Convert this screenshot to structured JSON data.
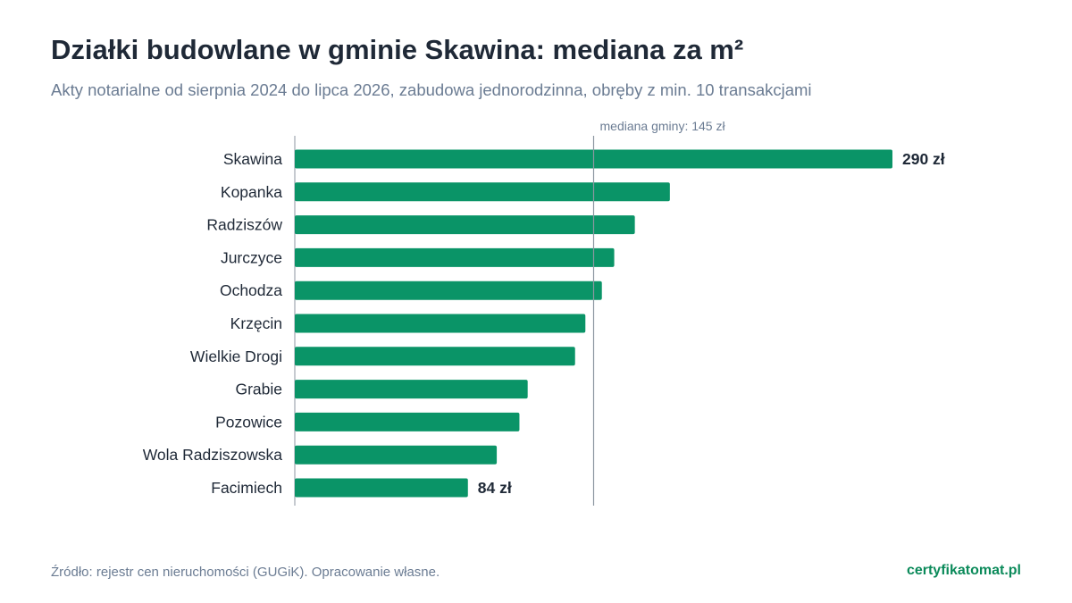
{
  "chart_data": {
    "type": "bar",
    "orientation": "horizontal",
    "title": "Działki budowlane w gminie Skawina: mediana za m²",
    "subtitle": "Akty notarialne od sierpnia 2024 do lipca 2026, zabudowa jednorodzinna, obręby z min. 10 transakcjami",
    "categories": [
      "Skawina",
      "Kopanka",
      "Radziszów",
      "Jurczyce",
      "Ochodza",
      "Krzęcin",
      "Wielkie Drogi",
      "Grabie",
      "Pozowice",
      "Wola Radziszowska",
      "Facimiech"
    ],
    "values": [
      290,
      182,
      165,
      155,
      149,
      141,
      136,
      113,
      109,
      98,
      84
    ],
    "value_labels": [
      {
        "category": "Skawina",
        "text": "290 zł"
      },
      {
        "category": "Facimiech",
        "text": "84 zł"
      }
    ],
    "reference_line": {
      "value": 145,
      "label": "mediana gminy: 145 zł"
    },
    "xlim": [
      0,
      290
    ],
    "grid": false,
    "legend": "none",
    "bar_color": "#0a9467",
    "reference_line_color": "#8c96a0"
  },
  "footer": {
    "source": "Źródło: rejestr cen nieruchomości (GUGiK). Opracowanie własne.",
    "brand": "certyfikatomat.pl",
    "brand_color": "#0b8a5a"
  }
}
